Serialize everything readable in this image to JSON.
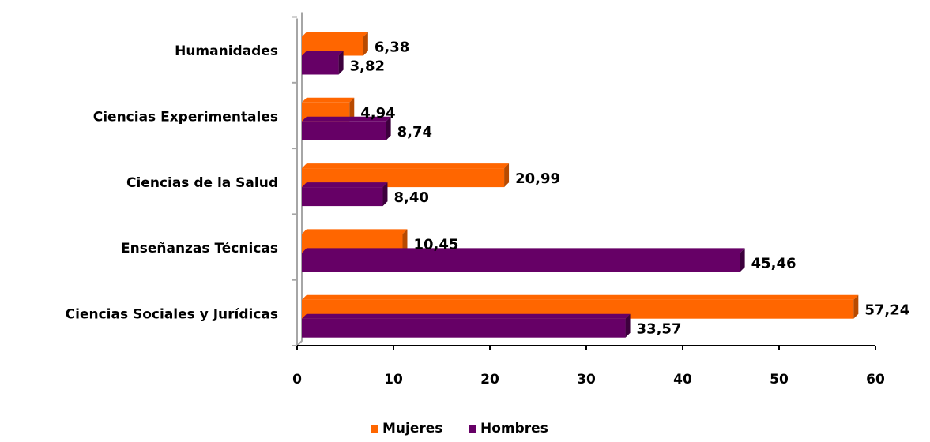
{
  "chart_data": {
    "type": "bar",
    "orientation": "horizontal",
    "style": "3d",
    "categories": [
      "Humanidades",
      "Ciencias Experimentales",
      "Ciencias de la Salud",
      "Enseñanzas Técnicas",
      "Ciencias Sociales y Jurídicas"
    ],
    "series": [
      {
        "name": "Mujeres",
        "color": "#FF6600",
        "side_color": "#B84A00",
        "values": [
          6.38,
          4.94,
          20.99,
          10.45,
          57.24
        ],
        "labels": [
          "6,38",
          "4,94",
          "20,99",
          "10,45",
          "57,24"
        ]
      },
      {
        "name": "Hombres",
        "color": "#660066",
        "side_color": "#3D003D",
        "values": [
          3.82,
          8.74,
          8.4,
          45.46,
          33.57
        ],
        "labels": [
          "3,82",
          "8,74",
          "8,40",
          "45,46",
          "33,57"
        ]
      }
    ],
    "x_ticks": [
      "0",
      "10",
      "20",
      "30",
      "40",
      "50",
      "60"
    ],
    "xlim": [
      0,
      60
    ],
    "grid": false,
    "legend_position": "bottom"
  }
}
